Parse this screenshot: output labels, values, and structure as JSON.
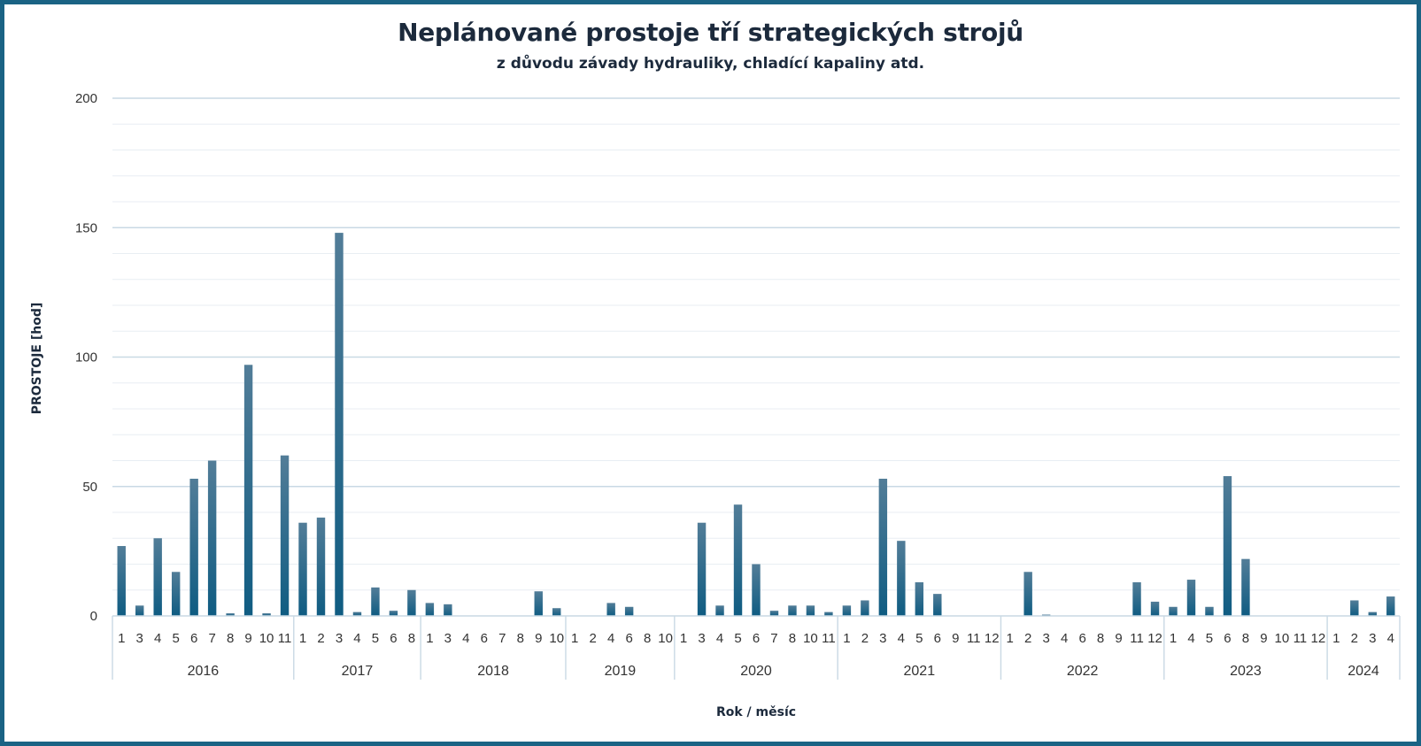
{
  "colors": {
    "frame": "#1a6384",
    "bar_top": "#527d98",
    "bar_bottom": "#0f5c82",
    "grid_major": "#c9d9e4",
    "grid_minor": "#e8eef3",
    "text": "#1c2a3c"
  },
  "chart_data": {
    "type": "bar",
    "title": "Neplánované prostoje tří strategických strojů",
    "subtitle": "z důvodu závady hydrauliky, chladící kapaliny atd.",
    "ylabel": "PROSTOJE  [hod]",
    "xlabel": "Rok / měsíc",
    "ylim": [
      0,
      200
    ],
    "yticks": [
      0,
      50,
      100,
      150,
      200
    ],
    "grid": true,
    "legend": "none",
    "groups": [
      {
        "year": "2016",
        "months": [
          "1",
          "3",
          "4",
          "5",
          "6",
          "7",
          "8",
          "9",
          "10",
          "11"
        ],
        "values": [
          27,
          4,
          30,
          17,
          53,
          60,
          1,
          97,
          1,
          62
        ]
      },
      {
        "year": "2017",
        "months": [
          "1",
          "2",
          "3",
          "4",
          "5",
          "6",
          "8"
        ],
        "values": [
          36,
          38,
          148,
          1.5,
          11,
          2,
          10
        ]
      },
      {
        "year": "2018",
        "months": [
          "1",
          "3",
          "4",
          "6",
          "7",
          "8",
          "9",
          "10"
        ],
        "values": [
          5,
          4.5,
          0,
          0,
          0,
          0,
          9.5,
          3
        ]
      },
      {
        "year": "2019",
        "months": [
          "1",
          "2",
          "4",
          "6",
          "8",
          "10"
        ],
        "values": [
          0,
          0,
          5,
          3.5,
          0,
          0
        ]
      },
      {
        "year": "2020",
        "months": [
          "1",
          "3",
          "4",
          "5",
          "6",
          "7",
          "8",
          "10",
          "11"
        ],
        "values": [
          0,
          36,
          4,
          43,
          20,
          2,
          4,
          4,
          1.5
        ]
      },
      {
        "year": "2021",
        "months": [
          "1",
          "2",
          "3",
          "4",
          "5",
          "6",
          "9",
          "11",
          "12"
        ],
        "values": [
          4,
          6,
          53,
          29,
          13,
          8.5,
          0,
          0,
          0
        ]
      },
      {
        "year": "2022",
        "months": [
          "1",
          "2",
          "3",
          "4",
          "6",
          "8",
          "9",
          "11",
          "12"
        ],
        "values": [
          0,
          17,
          0.5,
          0,
          0,
          0,
          0,
          13,
          5.5
        ]
      },
      {
        "year": "2023",
        "months": [
          "1",
          "4",
          "5",
          "6",
          "8",
          "9",
          "10",
          "11",
          "12"
        ],
        "values": [
          3.5,
          14,
          3.5,
          54,
          22,
          0,
          0,
          0,
          0
        ]
      },
      {
        "year": "2024",
        "months": [
          "1",
          "2",
          "3",
          "4"
        ],
        "values": [
          0,
          6,
          1.5,
          7.5
        ]
      }
    ]
  }
}
